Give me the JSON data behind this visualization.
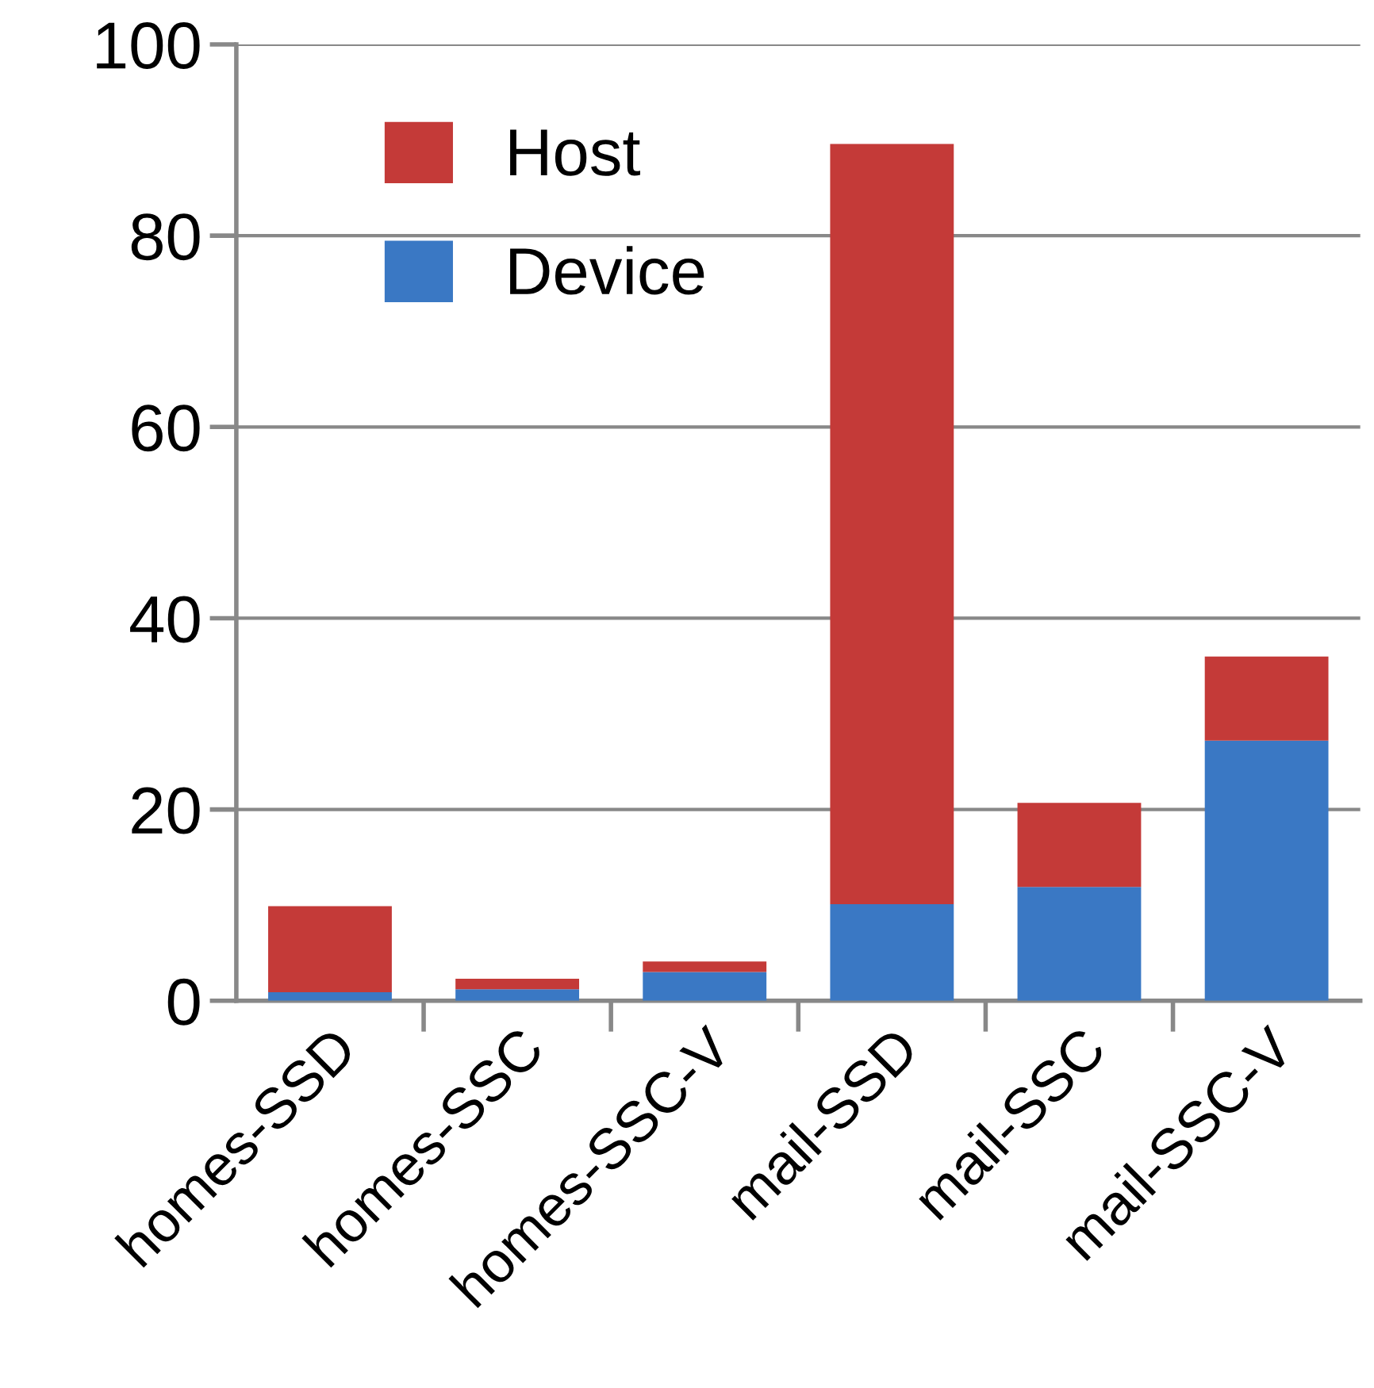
{
  "chart_data": {
    "type": "bar",
    "stacked": true,
    "categories": [
      "homes-SSD",
      "homes-SSC",
      "homes-SSC-V",
      "mail-SSD",
      "mail-SSC",
      "mail-SSC-V"
    ],
    "series": [
      {
        "name": "Device",
        "color": "#3a78c4",
        "values": [
          0.9,
          1.2,
          3.0,
          10.1,
          11.9,
          27.2
        ]
      },
      {
        "name": "Host",
        "color": "#c43a38",
        "values": [
          9.0,
          1.1,
          1.1,
          79.5,
          8.8,
          8.8
        ]
      }
    ],
    "ylim": [
      0,
      100
    ],
    "yticks": [
      0,
      20,
      40,
      60,
      80,
      100
    ],
    "grid": "y",
    "legend": "top left"
  }
}
